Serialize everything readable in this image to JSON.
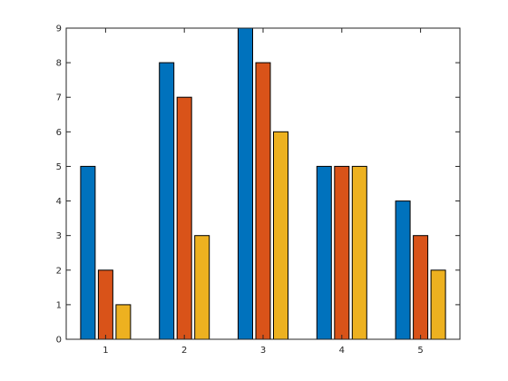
{
  "chart_data": {
    "type": "bar",
    "categories": [
      "1",
      "2",
      "3",
      "4",
      "5"
    ],
    "series": [
      {
        "values": [
          5,
          8,
          9,
          5,
          4
        ],
        "color": "#0072BD"
      },
      {
        "values": [
          2,
          7,
          8,
          5,
          3
        ],
        "color": "#D95319"
      },
      {
        "values": [
          1,
          3,
          6,
          5,
          2
        ],
        "color": "#EDB120"
      }
    ],
    "title": "",
    "xlabel": "",
    "ylabel": "",
    "xlim": [
      0.5,
      5.5
    ],
    "ylim": [
      0,
      9
    ],
    "yticks": [
      0,
      1,
      2,
      3,
      4,
      5,
      6,
      7,
      8,
      9
    ],
    "grid": false,
    "legend": "none",
    "box": true
  }
}
